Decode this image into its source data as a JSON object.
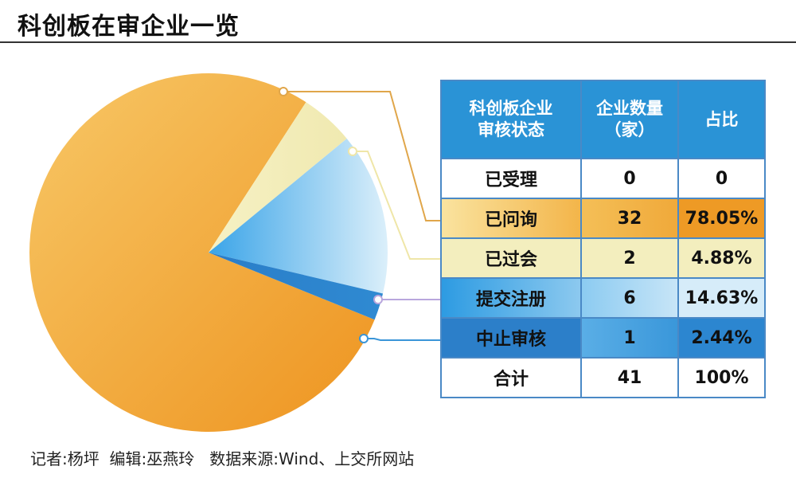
{
  "title": "科创板在审企业一览",
  "footer": "记者:杨坪  编辑:巫燕玲   数据来源:Wind、上交所网站",
  "chart_data": {
    "type": "pie",
    "slices": [
      {
        "label": "已问询",
        "value": 32,
        "color": "#f2a93c"
      },
      {
        "label": "已过会",
        "value": 2,
        "color": "#f3eebe"
      },
      {
        "label": "提交注册",
        "value": 6,
        "color": "#8ccbf1"
      },
      {
        "label": "中止审核",
        "value": 1,
        "color": "#2c7fc9"
      }
    ]
  },
  "table": {
    "headers": [
      "科创板企业\n审核状态",
      "企业数量\n（家）",
      "占比"
    ],
    "rows": [
      [
        "已受理",
        "0",
        "0"
      ],
      [
        "已问询",
        "32",
        "78.05%"
      ],
      [
        "已过会",
        "2",
        "4.88%"
      ],
      [
        "提交注册",
        "6",
        "14.63%"
      ],
      [
        "中止审核",
        "1",
        "2.44%"
      ],
      [
        "合计",
        "41",
        "100%"
      ]
    ]
  }
}
